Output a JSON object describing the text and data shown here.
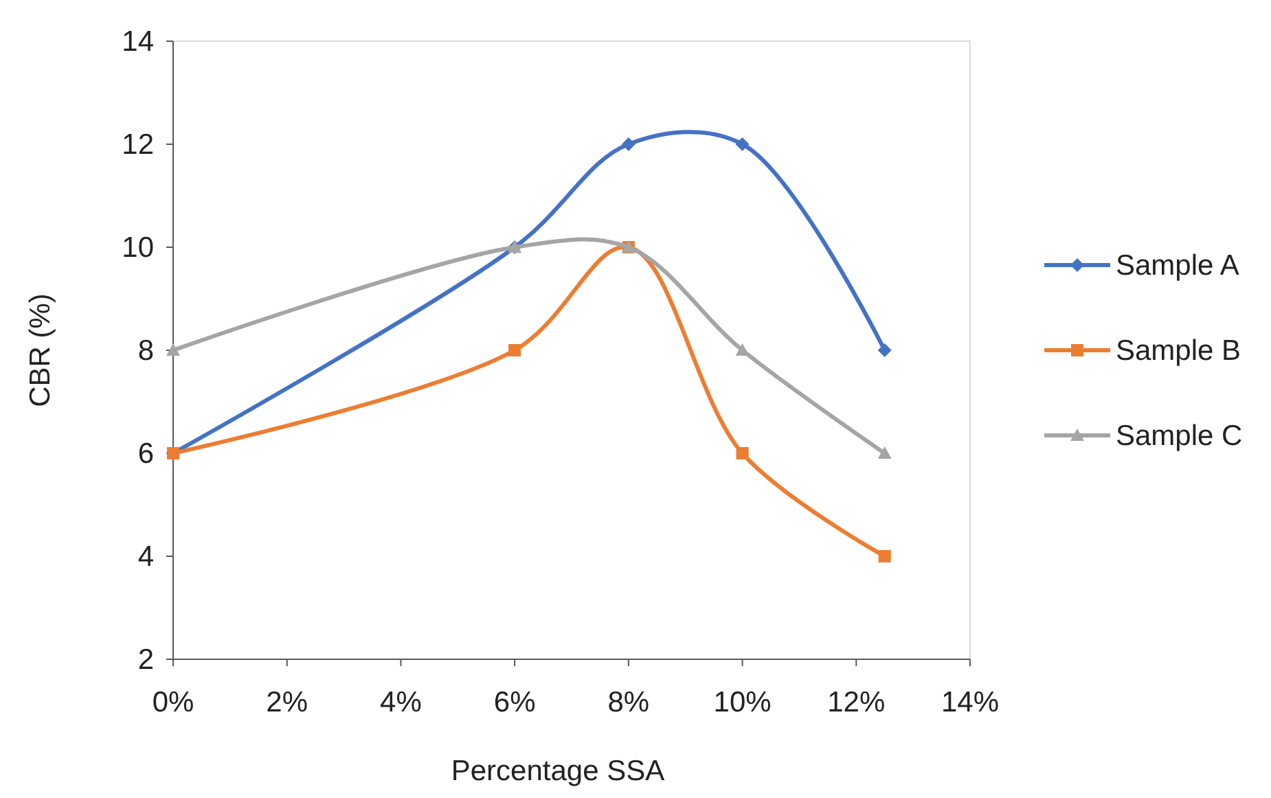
{
  "chart_data": {
    "type": "line",
    "xlabel": "Percentage SSA",
    "ylabel": "CBR (%)",
    "x": [
      0,
      6,
      8,
      10,
      12.5
    ],
    "series": [
      {
        "name": "Sample A",
        "color": "#4472c4",
        "marker": "diamond",
        "values": [
          6,
          10,
          12,
          12,
          8
        ]
      },
      {
        "name": "Sample B",
        "color": "#ed7d31",
        "marker": "square",
        "values": [
          6,
          8,
          10,
          6,
          4
        ]
      },
      {
        "name": "Sample C",
        "color": "#a5a5a5",
        "marker": "triangle",
        "values": [
          8,
          10,
          10,
          8,
          6
        ]
      }
    ],
    "xlim": [
      0,
      14
    ],
    "xticks": [
      {
        "value": 0,
        "label": "0%"
      },
      {
        "value": 2,
        "label": "2%"
      },
      {
        "value": 4,
        "label": "4%"
      },
      {
        "value": 6,
        "label": "6%"
      },
      {
        "value": 8,
        "label": "8%"
      },
      {
        "value": 10,
        "label": "10%"
      },
      {
        "value": 12,
        "label": "12%"
      },
      {
        "value": 14,
        "label": "14%"
      }
    ],
    "ylim": [
      2,
      14
    ],
    "yticks": [
      2,
      4,
      6,
      8,
      10,
      12,
      14
    ],
    "grid": false,
    "legend": "right",
    "line_style": "solid"
  }
}
